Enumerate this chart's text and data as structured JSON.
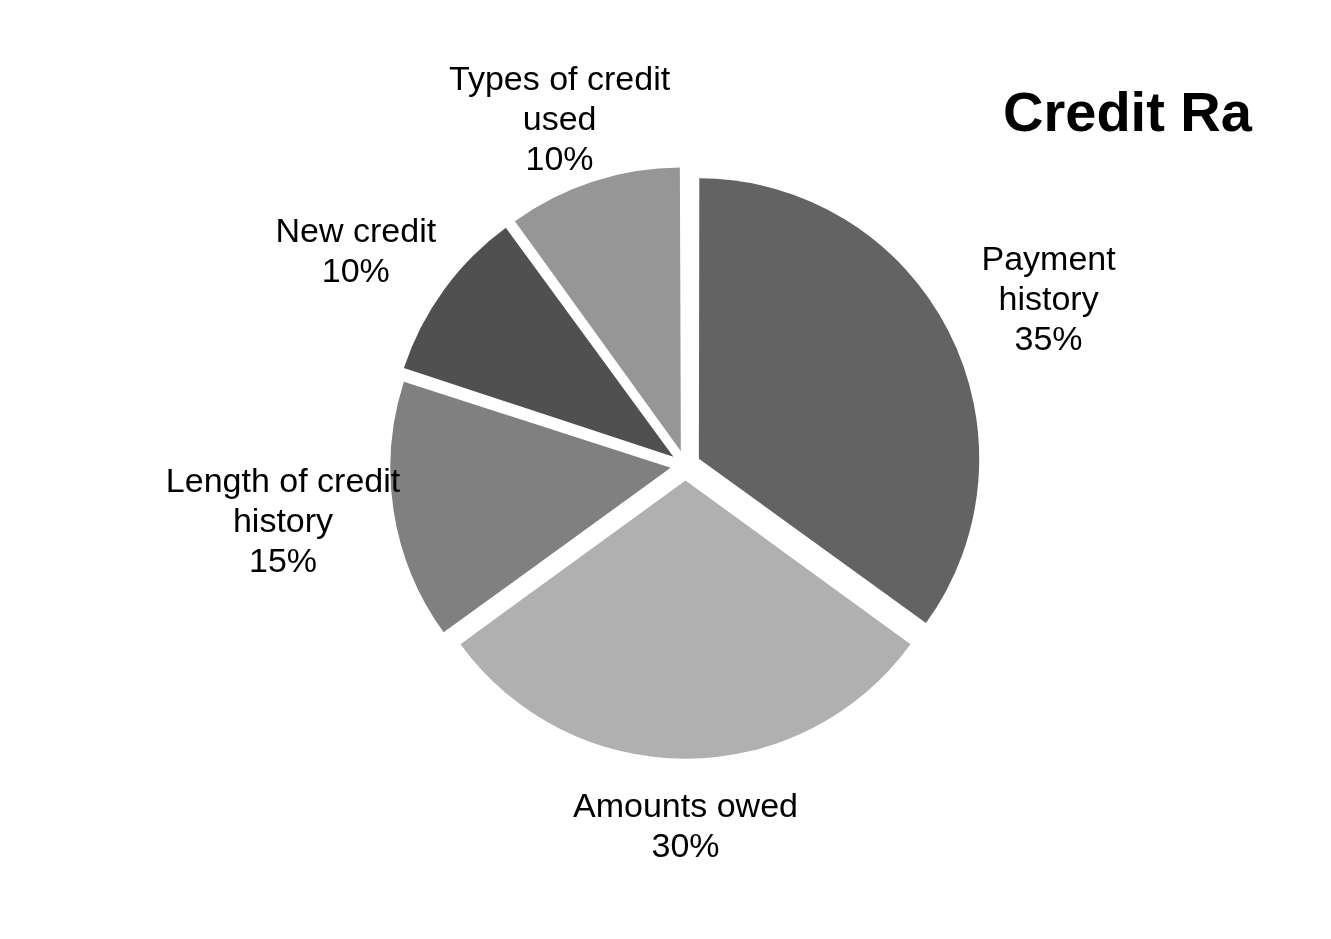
{
  "chart_data": {
    "type": "pie",
    "title": "Credit Ra",
    "categories": [
      "Payment history",
      "Amounts owed",
      "Length of credit history",
      "New credit",
      "Types of credit used"
    ],
    "values": [
      35,
      30,
      15,
      10,
      10
    ],
    "value_labels": [
      "35%",
      "30%",
      "15%",
      "10%",
      "10%"
    ],
    "colors": [
      "#636363",
      "#b0b0b0",
      "#808080",
      "#505050",
      "#969696"
    ],
    "legend": false
  }
}
